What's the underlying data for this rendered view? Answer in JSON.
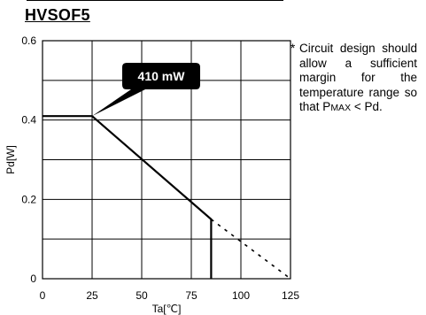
{
  "figure": {
    "title": "HVSOF5",
    "note_marker": "*",
    "note_text": "Circuit design should allow a sufficient margin for the temperature range so that",
    "note_pmax_p": "P",
    "note_pmax_max": "MAX",
    "note_pmax_rest": " < Pd."
  },
  "chart_data": {
    "type": "line",
    "title": "",
    "xlabel": "Ta[℃]",
    "ylabel": "Pd[W]",
    "xlim": [
      0,
      125
    ],
    "ylim": [
      0,
      0.6
    ],
    "xticks": [
      0,
      25,
      50,
      75,
      100,
      125
    ],
    "yticks": [
      0,
      0.2,
      0.4,
      0.6
    ],
    "xtick_labels": [
      "0",
      "25",
      "50",
      "75",
      "100",
      "125"
    ],
    "ytick_labels": [
      "0",
      "0.2",
      "0.4",
      "0.6"
    ],
    "grid": true,
    "series": [
      {
        "style": "solid",
        "x": [
          0,
          25,
          85,
          85
        ],
        "y": [
          0.41,
          0.41,
          0.15,
          0
        ]
      },
      {
        "style": "dashed",
        "x": [
          85,
          125
        ],
        "y": [
          0.15,
          0
        ]
      }
    ],
    "annotation": {
      "text": "410 mW",
      "x": 25,
      "y": 0.41
    }
  }
}
